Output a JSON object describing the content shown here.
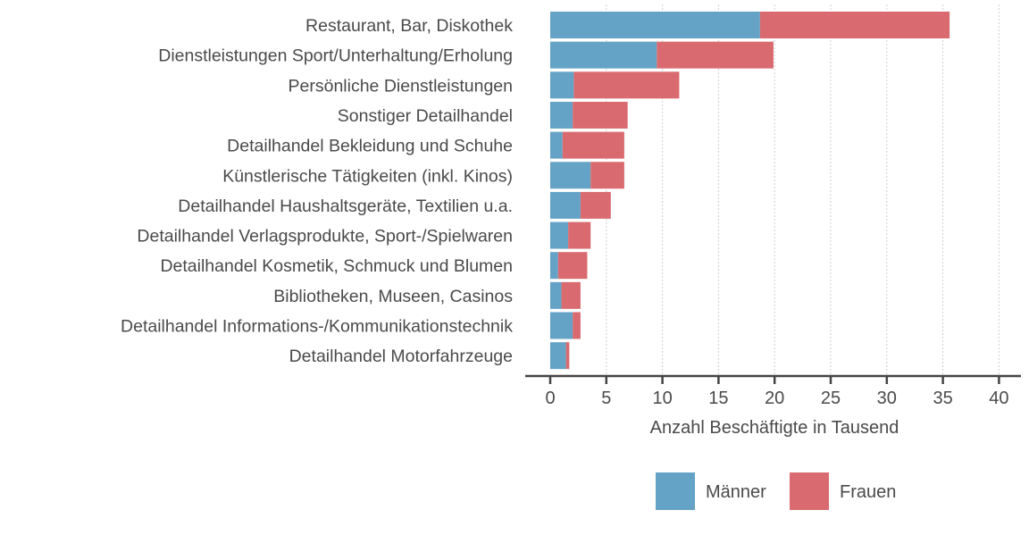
{
  "chart_data": {
    "type": "bar",
    "orientation": "horizontal",
    "stacked": true,
    "title": "",
    "xlabel": "Anzahl Beschäftigte in Tausend",
    "ylabel": "",
    "xlim": [
      0,
      40
    ],
    "xticks": [
      0,
      5,
      10,
      15,
      20,
      25,
      30,
      35,
      40
    ],
    "grid": true,
    "legend_position": "bottom",
    "categories": [
      "Restaurant, Bar, Diskothek",
      "Dienstleistungen Sport/Unterhaltung/Erholung",
      "Persönliche Dienstleistungen",
      "Sonstiger Detailhandel",
      "Detailhandel Bekleidung und Schuhe",
      "Künstlerische Tätigkeiten (inkl. Kinos)",
      "Detailhandel Haushaltsgeräte, Textilien u.a.",
      "Detailhandel Verlagsprodukte, Sport-/Spielwaren",
      "Detailhandel Kosmetik, Schmuck und Blumen",
      "Bibliotheken, Museen, Casinos",
      "Detailhandel Informations-/Kommunikationstechnik",
      "Detailhandel Motorfahrzeuge"
    ],
    "series": [
      {
        "name": "Männer",
        "color": "#64a3c6",
        "values": [
          18.7,
          9.5,
          2.1,
          2.0,
          1.1,
          3.6,
          2.7,
          1.6,
          0.7,
          1.0,
          2.0,
          1.4
        ]
      },
      {
        "name": "Frauen",
        "color": "#d96b70",
        "values": [
          16.9,
          10.4,
          9.4,
          4.9,
          5.5,
          3.0,
          2.7,
          2.0,
          2.6,
          1.7,
          0.7,
          0.3
        ]
      }
    ]
  }
}
